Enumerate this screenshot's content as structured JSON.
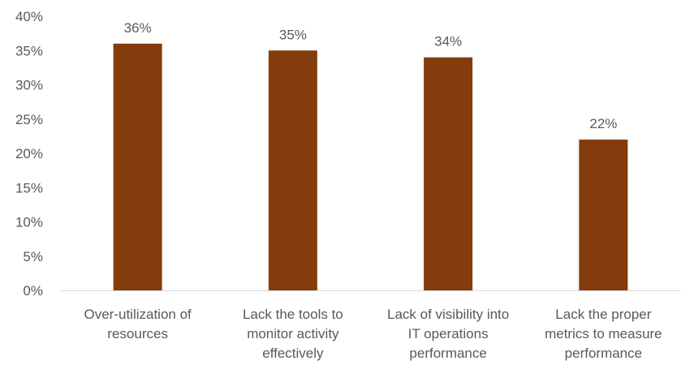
{
  "chart_data": {
    "type": "bar",
    "categories": [
      [
        "Over-utilization of",
        "resources"
      ],
      [
        "Lack the tools to",
        "monitor activity",
        "effectively"
      ],
      [
        "Lack of visibility into",
        "IT operations",
        "performance"
      ],
      [
        "Lack the proper",
        "metrics to measure",
        "performance"
      ]
    ],
    "values": [
      36,
      35,
      34,
      22
    ],
    "data_labels": [
      "36%",
      "35%",
      "34%",
      "22%"
    ],
    "ylim": [
      0,
      40
    ],
    "yticks": [
      0,
      5,
      10,
      15,
      20,
      25,
      30,
      35,
      40
    ],
    "ytick_labels": [
      "0%",
      "5%",
      "10%",
      "15%",
      "20%",
      "25%",
      "30%",
      "35%",
      "40%"
    ],
    "bar_color": "#843C0C",
    "grid": false,
    "legend": "none"
  }
}
